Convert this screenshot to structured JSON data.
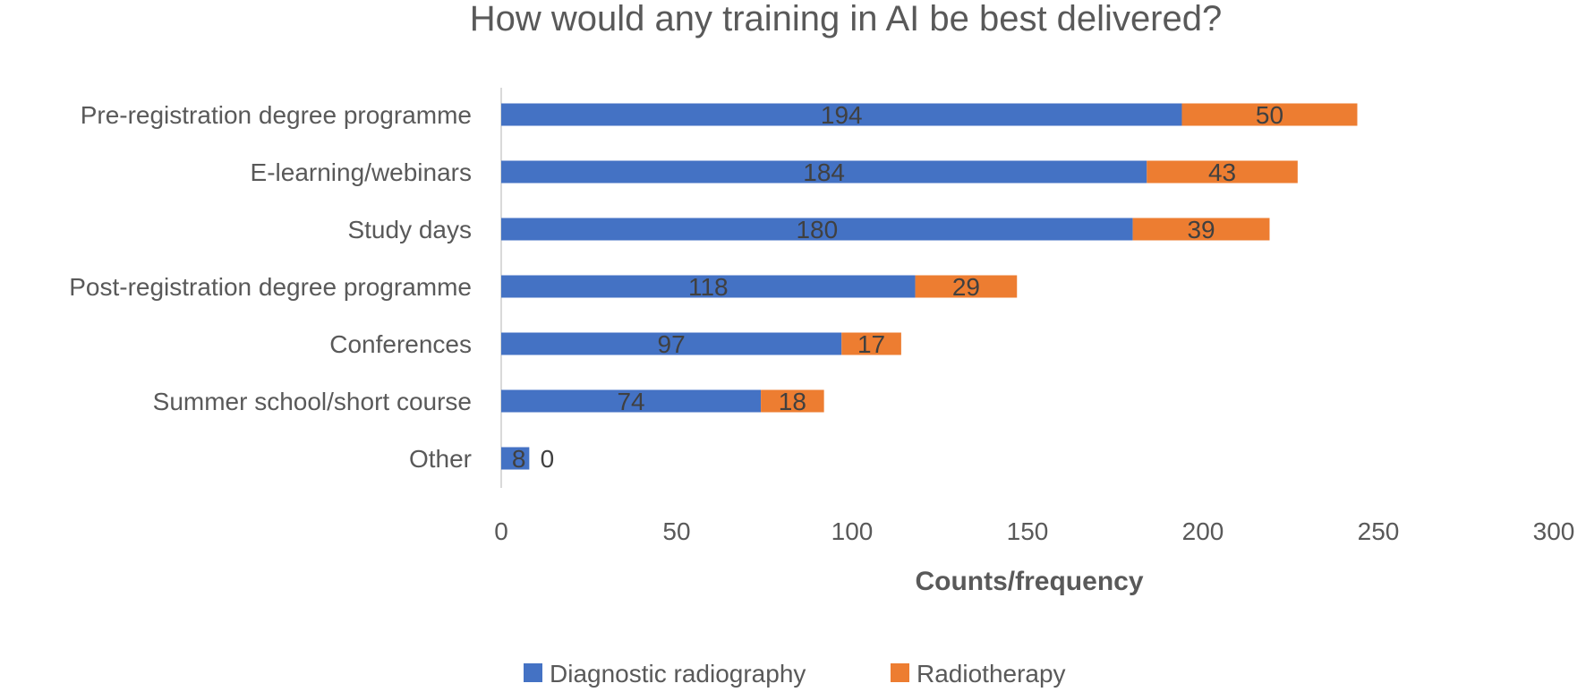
{
  "chart_data": {
    "type": "bar",
    "orientation": "horizontal",
    "stacked": true,
    "title": "How would any training in AI be best delivered?",
    "xlabel": "Counts/frequency",
    "ylabel": "",
    "categories": [
      "Pre-registration degree programme",
      "E-learning/webinars",
      "Study days",
      "Post-registration degree programme",
      "Conferences",
      "Summer school/short course",
      "Other"
    ],
    "series": [
      {
        "name": "Diagnostic radiography",
        "color": "#4472C4",
        "values": [
          194,
          184,
          180,
          118,
          97,
          74,
          8
        ]
      },
      {
        "name": "Radiotherapy",
        "color": "#ED7D31",
        "values": [
          50,
          43,
          39,
          29,
          17,
          18,
          0
        ]
      }
    ],
    "xlim": [
      0,
      300
    ],
    "xticks": [
      0,
      50,
      100,
      150,
      200,
      250,
      300
    ],
    "grid": false,
    "legend": "bottom"
  }
}
